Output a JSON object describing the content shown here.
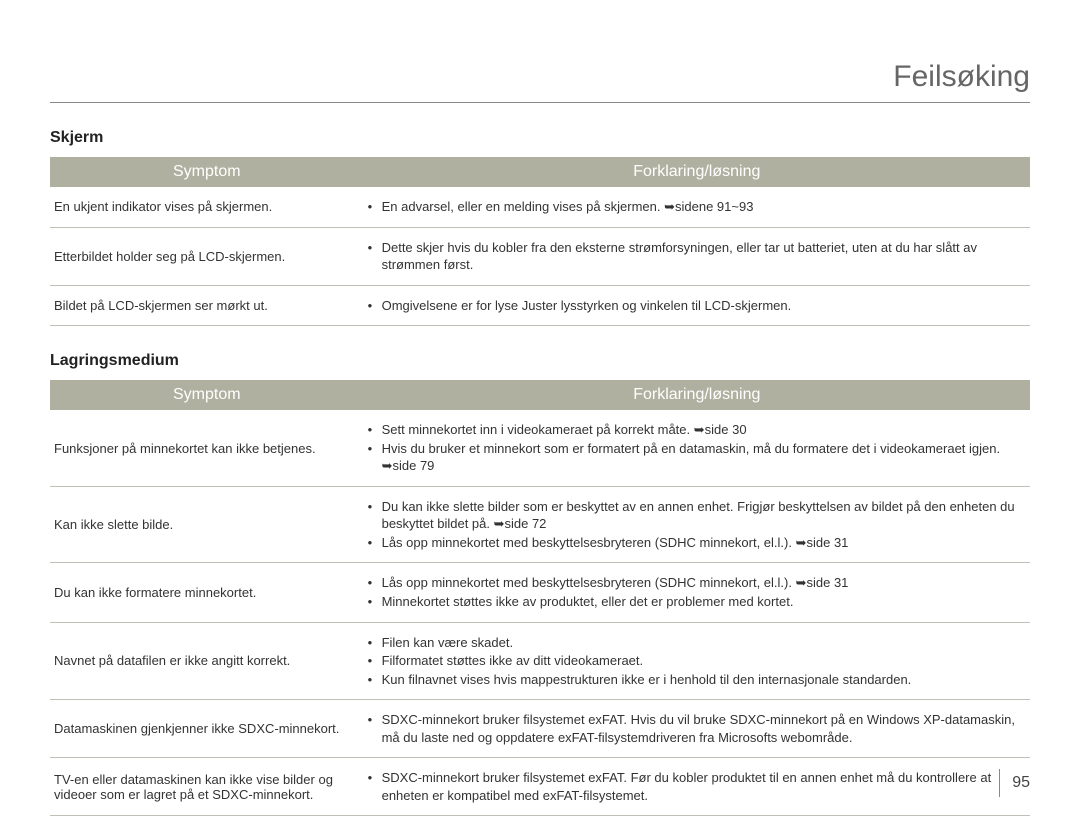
{
  "title": "Feilsøking",
  "page_number": "95",
  "colors": {
    "header_bg": "#b0b0a0",
    "header_text": "#ffffff",
    "row_border": "#c0c0b8",
    "body_text": "#333333",
    "title_text": "#666666"
  },
  "sections": [
    {
      "heading": "Skjerm",
      "columns": {
        "symptom": "Symptom",
        "explanation": "Forklaring/løsning"
      },
      "rows": [
        {
          "symptom": "En ukjent indikator vises på skjermen.",
          "bullets": [
            "En advarsel, eller en melding vises på skjermen. ➥sidene 91~93"
          ]
        },
        {
          "symptom": "Etterbildet holder seg på LCD-skjermen.",
          "bullets": [
            "Dette skjer hvis du kobler fra den eksterne strømforsyningen, eller tar ut batteriet, uten at du har slått av strømmen først."
          ]
        },
        {
          "symptom": "Bildet på LCD-skjermen ser mørkt ut.",
          "bullets": [
            "Omgivelsene er for lyse Juster lysstyrken og vinkelen til LCD-skjermen."
          ]
        }
      ]
    },
    {
      "heading": "Lagringsmedium",
      "columns": {
        "symptom": "Symptom",
        "explanation": "Forklaring/løsning"
      },
      "rows": [
        {
          "symptom": "Funksjoner på minnekortet kan ikke betjenes.",
          "bullets": [
            "Sett minnekortet inn i videokameraet på korrekt måte. ➥side 30",
            "Hvis du bruker et minnekort som er formatert på en datamaskin, må du formatere det i videokameraet igjen. ➥side 79"
          ]
        },
        {
          "symptom": "Kan ikke slette bilde.",
          "bullets": [
            "Du kan ikke slette bilder som er beskyttet av en annen enhet. Frigjør beskyttelsen av bildet på den enheten du beskyttet bildet på. ➥side 72",
            "Lås opp minnekortet med beskyttelsesbryteren (SDHC minnekort, el.l.). ➥side 31"
          ]
        },
        {
          "symptom": "Du kan ikke formatere minnekortet.",
          "bullets": [
            "Lås opp minnekortet med beskyttelsesbryteren (SDHC minnekort, el.l.). ➥side 31",
            "Minnekortet støttes ikke av produktet, eller det er problemer med kortet."
          ]
        },
        {
          "symptom": "Navnet på datafilen er ikke angitt korrekt.",
          "bullets": [
            "Filen kan være skadet.",
            "Filformatet støttes ikke av ditt videokameraet.",
            "Kun filnavnet vises hvis mappestrukturen ikke er i henhold til den internasjonale standarden."
          ]
        },
        {
          "symptom": "Datamaskinen gjenkjenner ikke SDXC-minnekort.",
          "bullets": [
            "SDXC-minnekort bruker filsystemet exFAT. Hvis du vil bruke SDXC-minnekort på en Windows XP-datamaskin, må du laste ned og oppdatere exFAT-filsystemdriveren fra Microsofts webområde."
          ]
        },
        {
          "symptom": "TV-en eller datamaskinen kan ikke vise bilder og videoer som er lagret på et SDXC-minnekort.",
          "bullets": [
            "SDXC-minnekort bruker filsystemet exFAT. Før du kobler produktet til en annen enhet må du kontrollere at enheten er kompatibel med exFAT-filsystemet."
          ]
        }
      ]
    }
  ]
}
